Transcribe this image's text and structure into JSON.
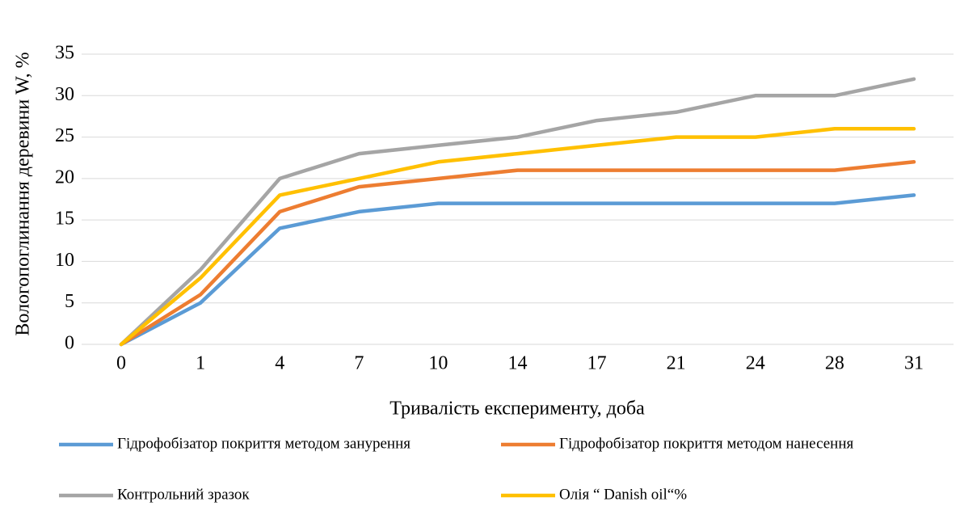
{
  "chart_data": {
    "type": "line",
    "x_label": "Тривалість експерименту, доба",
    "y_label": "Вологопоглинання деревини W, %",
    "categories": [
      "0",
      "1",
      "4",
      "7",
      "10",
      "14",
      "17",
      "21",
      "24",
      "28",
      "31"
    ],
    "series": [
      {
        "name": "Гідрофобізатор покриття методом занурення",
        "color": "#5b9bd5",
        "values": [
          0,
          5,
          14,
          16,
          17,
          17,
          17,
          17,
          17,
          17,
          18
        ]
      },
      {
        "name": "Гідрофобізатор покриття методом нанесення",
        "color": "#ed7d31",
        "values": [
          0,
          6,
          16,
          19,
          20,
          21,
          21,
          21,
          21,
          21,
          22
        ]
      },
      {
        "name": "Контрольний зразок",
        "color": "#a5a5a5",
        "values": [
          0,
          9,
          20,
          23,
          24,
          25,
          27,
          28,
          30,
          30,
          32
        ]
      },
      {
        "name": "Олія “ Danish oil“%",
        "color": "#ffc000",
        "values": [
          0,
          8,
          18,
          20,
          22,
          23,
          24,
          25,
          25,
          26,
          26
        ]
      }
    ],
    "ylim": [
      0,
      35
    ],
    "yticks": [
      0,
      5,
      10,
      15,
      20,
      25,
      30,
      35
    ],
    "grid": true
  }
}
